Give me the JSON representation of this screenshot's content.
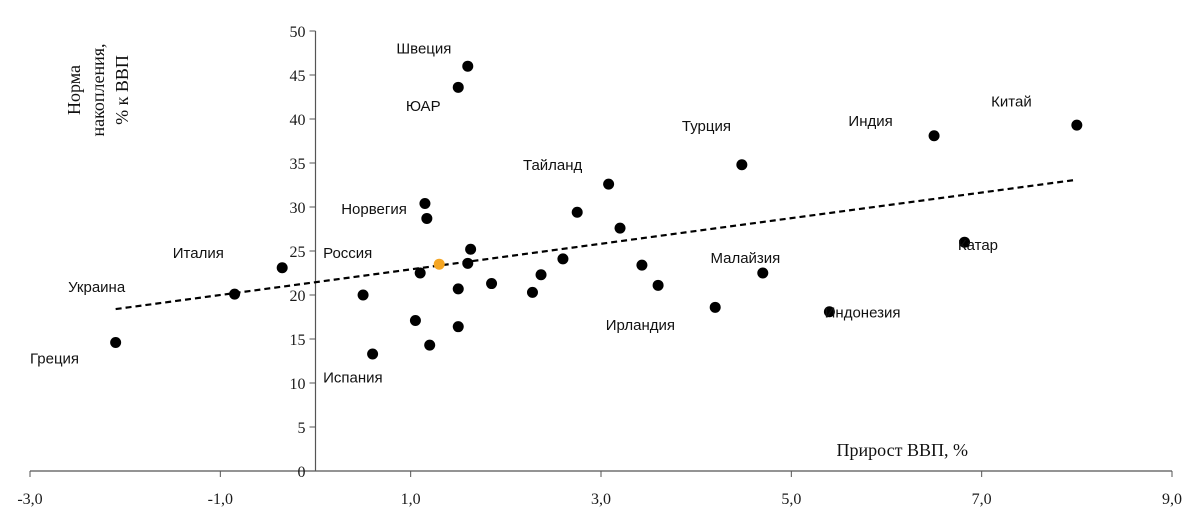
{
  "chart_data": {
    "type": "scatter",
    "title": "",
    "xlabel": "Прирост ВВП, %",
    "ylabel_lines": [
      "Норма",
      "накопления,",
      "% к ВВП"
    ],
    "xlim": [
      -3,
      9
    ],
    "ylim": [
      0,
      50
    ],
    "x_ticks": [
      -3,
      -1,
      1,
      3,
      5,
      7,
      9
    ],
    "x_tick_labels": [
      "-3,0",
      "-1,0",
      "1,0",
      "3,0",
      "5,0",
      "7,0",
      "9,0"
    ],
    "y_ticks": [
      0,
      5,
      10,
      15,
      20,
      25,
      30,
      35,
      40,
      45,
      50
    ],
    "y_tick_labels": [
      "0",
      "5",
      "10",
      "15",
      "20",
      "25",
      "30",
      "35",
      "40",
      "45",
      "50"
    ],
    "grid": false,
    "legend": "none",
    "colors": {
      "point": "#000000",
      "highlight": "#f5a623",
      "trend": "#000000"
    },
    "points": [
      {
        "x": -2.1,
        "y": 14.6
      },
      {
        "x": -0.85,
        "y": 20.1
      },
      {
        "x": -0.35,
        "y": 23.1
      },
      {
        "x": 0.5,
        "y": 20.0
      },
      {
        "x": 0.6,
        "y": 13.3
      },
      {
        "x": 1.05,
        "y": 17.1
      },
      {
        "x": 1.1,
        "y": 22.5
      },
      {
        "x": 1.15,
        "y": 30.4
      },
      {
        "x": 1.17,
        "y": 28.7
      },
      {
        "x": 1.2,
        "y": 14.3
      },
      {
        "x": 1.3,
        "y": 23.5,
        "highlight": true
      },
      {
        "x": 1.5,
        "y": 43.6
      },
      {
        "x": 1.5,
        "y": 20.7
      },
      {
        "x": 1.5,
        "y": 16.4
      },
      {
        "x": 1.6,
        "y": 46.0
      },
      {
        "x": 1.6,
        "y": 23.6
      },
      {
        "x": 1.63,
        "y": 25.2
      },
      {
        "x": 1.85,
        "y": 21.3
      },
      {
        "x": 2.28,
        "y": 20.3
      },
      {
        "x": 2.37,
        "y": 22.3
      },
      {
        "x": 2.6,
        "y": 24.1
      },
      {
        "x": 2.75,
        "y": 29.4
      },
      {
        "x": 3.08,
        "y": 32.6
      },
      {
        "x": 3.2,
        "y": 27.6
      },
      {
        "x": 3.43,
        "y": 23.4
      },
      {
        "x": 3.6,
        "y": 21.1
      },
      {
        "x": 4.2,
        "y": 18.6
      },
      {
        "x": 4.48,
        "y": 34.8
      },
      {
        "x": 4.7,
        "y": 22.5
      },
      {
        "x": 5.4,
        "y": 18.1
      },
      {
        "x": 6.5,
        "y": 38.1
      },
      {
        "x": 6.82,
        "y": 26.0
      },
      {
        "x": 8.0,
        "y": 39.3
      }
    ],
    "trendline": {
      "style": "dashed",
      "from": {
        "x": -2.1,
        "y": 18.4
      },
      "to": {
        "x": 8.0,
        "y": 33.1
      }
    },
    "annotations": [
      {
        "text": "Швеция",
        "x": 0.85,
        "y": 48.0,
        "anchor": "start"
      },
      {
        "text": "ЮАР",
        "x": 0.95,
        "y": 41.5,
        "anchor": "start"
      },
      {
        "text": "Индия",
        "x": 5.6,
        "y": 39.8,
        "anchor": "start"
      },
      {
        "text": "Китай",
        "x": 7.1,
        "y": 42.0,
        "anchor": "start"
      },
      {
        "text": "Турция",
        "x": 3.85,
        "y": 39.2,
        "anchor": "start"
      },
      {
        "text": "Тайланд",
        "x": 2.18,
        "y": 34.8,
        "anchor": "start"
      },
      {
        "text": "Норвегия",
        "x": 0.27,
        "y": 29.8,
        "anchor": "start"
      },
      {
        "text": "Италия",
        "x": -1.5,
        "y": 24.8,
        "anchor": "start"
      },
      {
        "text": "Россия",
        "x": 0.08,
        "y": 24.8,
        "anchor": "start"
      },
      {
        "text": "Катар",
        "x": 6.75,
        "y": 25.7,
        "anchor": "start"
      },
      {
        "text": "Малайзия",
        "x": 4.15,
        "y": 24.2,
        "anchor": "start"
      },
      {
        "text": "Украина",
        "x": -2.6,
        "y": 20.9,
        "anchor": "start"
      },
      {
        "text": "Индонезия",
        "x": 5.35,
        "y": 18.0,
        "anchor": "start"
      },
      {
        "text": "Ирландия",
        "x": 3.05,
        "y": 16.6,
        "anchor": "start"
      },
      {
        "text": "Греция",
        "x": -3.0,
        "y": 12.8,
        "anchor": "start"
      },
      {
        "text": "Испания",
        "x": 0.08,
        "y": 10.6,
        "anchor": "start"
      }
    ]
  }
}
